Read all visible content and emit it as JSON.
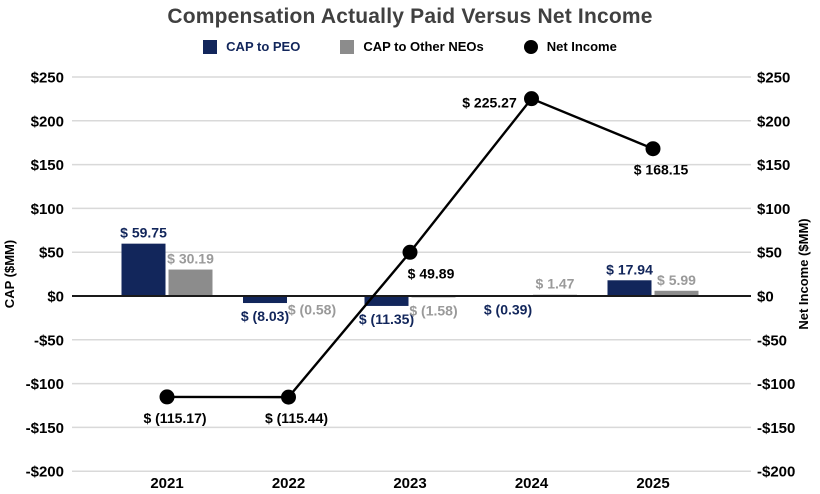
{
  "chart_data": {
    "type": "bar+line combo",
    "title": "Compensation Actually Paid Versus Net Income",
    "categories": [
      "2021",
      "2022",
      "2023",
      "2024",
      "2025"
    ],
    "bar_series": [
      {
        "key": "cap-to-peo",
        "name": "CAP to PEO",
        "color": "#12265B",
        "label_color": "#12265B",
        "values": [
          59.75,
          -8.03,
          -11.35,
          -0.39,
          17.94
        ],
        "labels": [
          "$ 59.75",
          "$ (8.03)",
          "$ (11.35)",
          "$ (0.39)",
          "$ 17.94"
        ]
      },
      {
        "key": "cap-to-other-neos",
        "name": "CAP to Other NEOs",
        "color": "#8C8C8C",
        "label_color": "#9A9A9A",
        "values": [
          30.19,
          -0.58,
          -1.58,
          1.47,
          5.99
        ],
        "labels": [
          "$ 30.19",
          "$ (0.58)",
          "$ (1.58)",
          "$ 1.47",
          "$ 5.99"
        ]
      }
    ],
    "line_series": {
      "key": "net-income",
      "name": "Net Income",
      "color": "#000000",
      "values": [
        -115.17,
        -115.44,
        49.89,
        225.27,
        168.15
      ],
      "labels": [
        "$ (115.17)",
        "$ (115.44)",
        "$ 49.89",
        "$ 225.27",
        "$ 168.15"
      ],
      "label_positions": [
        "below",
        "below",
        "below-right",
        "left",
        "below"
      ]
    },
    "y_axis": {
      "min": -200,
      "max": 250,
      "step": 50,
      "tick_values": [
        250,
        200,
        150,
        100,
        50,
        0,
        -50,
        -100,
        -150,
        -200
      ],
      "tick_labels": [
        "$250",
        "$200",
        "$150",
        "$100",
        "$50",
        "$0",
        "-$50",
        "-$100",
        "-$150",
        "-$200"
      ],
      "left_title": "CAP ($MM)",
      "right_title": "Net Income ($MM)"
    },
    "colors": {
      "background": "#FFFFFF",
      "grid": "#D9D9D9",
      "zero_line": "#1A1A1A",
      "title": "#404040",
      "tick_label": "#000000"
    },
    "legend_position": "top",
    "grid": true
  }
}
